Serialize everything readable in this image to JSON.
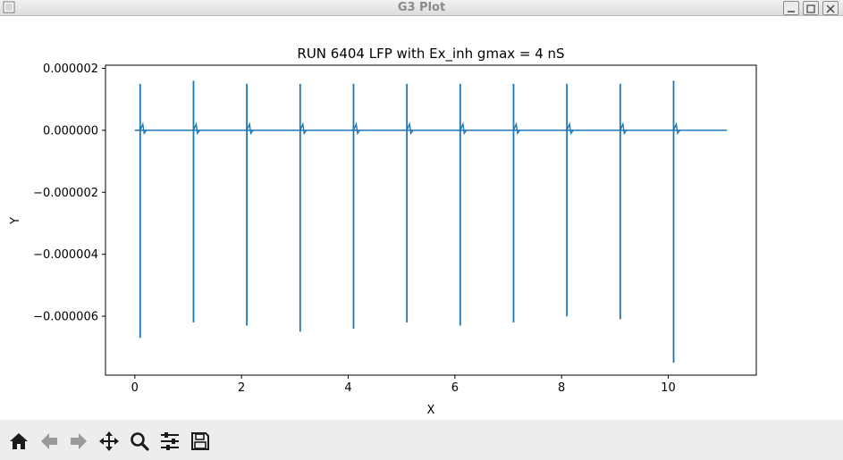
{
  "window": {
    "title": "G3 Plot"
  },
  "chart_data": {
    "type": "line",
    "title": "RUN 6404 LFP with Ex_inh gmax = 4 nS",
    "xlabel": "X",
    "ylabel": "Y",
    "xlim": [
      -0.55,
      11.65
    ],
    "ylim": [
      -7.9e-06,
      2.1e-06
    ],
    "xticks": [
      0,
      2,
      4,
      6,
      8,
      10
    ],
    "xtick_labels": [
      "0",
      "2",
      "4",
      "6",
      "8",
      "10"
    ],
    "yticks": [
      2e-06,
      0.0,
      -2e-06,
      -4e-06,
      -6e-06
    ],
    "ytick_labels": [
      "0.000002",
      "0.000000",
      "−0.000002",
      "−0.000004",
      "−0.000006"
    ],
    "color": "#1f77b4",
    "baseline": 0.0,
    "x_range": [
      0.0,
      11.1
    ],
    "spikes": [
      {
        "x": 0.1,
        "peak": 1.5e-06,
        "trough": -6.7e-06
      },
      {
        "x": 1.1,
        "peak": 1.6e-06,
        "trough": -6.2e-06
      },
      {
        "x": 2.1,
        "peak": 1.5e-06,
        "trough": -6.3e-06
      },
      {
        "x": 3.1,
        "peak": 1.5e-06,
        "trough": -6.5e-06
      },
      {
        "x": 4.1,
        "peak": 1.5e-06,
        "trough": -6.4e-06
      },
      {
        "x": 5.1,
        "peak": 1.5e-06,
        "trough": -6.2e-06
      },
      {
        "x": 6.1,
        "peak": 1.5e-06,
        "trough": -6.3e-06
      },
      {
        "x": 7.1,
        "peak": 1.5e-06,
        "trough": -6.2e-06
      },
      {
        "x": 8.1,
        "peak": 1.5e-06,
        "trough": -6e-06
      },
      {
        "x": 9.1,
        "peak": 1.5e-06,
        "trough": -6.1e-06
      },
      {
        "x": 10.1,
        "peak": 1.6e-06,
        "trough": -7.5e-06
      }
    ]
  },
  "toolbar": {
    "buttons": [
      "home-icon",
      "back-arrow-icon",
      "forward-arrow-icon",
      "pan-icon",
      "zoom-icon",
      "configure-subplots-icon",
      "save-icon"
    ]
  }
}
